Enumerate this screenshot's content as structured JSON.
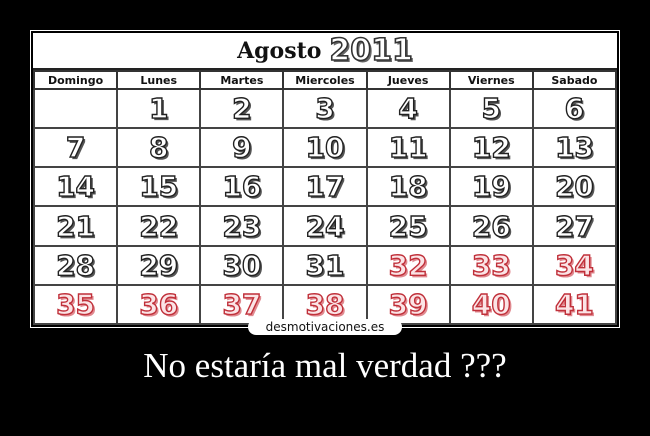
{
  "calendar": {
    "month": "Agosto",
    "year": "2011",
    "weekdays": [
      "Domingo",
      "Lunes",
      "Martes",
      "Miercoles",
      "Jueves",
      "Viernes",
      "Sabado"
    ],
    "weeks": [
      [
        "",
        "1",
        "2",
        "3",
        "4",
        "5",
        "6"
      ],
      [
        "7",
        "8",
        "9",
        "10",
        "11",
        "12",
        "13"
      ],
      [
        "14",
        "15",
        "16",
        "17",
        "18",
        "19",
        "20"
      ],
      [
        "21",
        "22",
        "23",
        "24",
        "25",
        "26",
        "27"
      ],
      [
        "28",
        "29",
        "30",
        "31",
        "32",
        "33",
        "34"
      ],
      [
        "35",
        "36",
        "37",
        "38",
        "39",
        "40",
        "41"
      ]
    ],
    "highlight_color": "#c0303a",
    "highlight_from": 32
  },
  "watermark": "desmotivaciones.es",
  "caption": "No estaría mal verdad ???"
}
